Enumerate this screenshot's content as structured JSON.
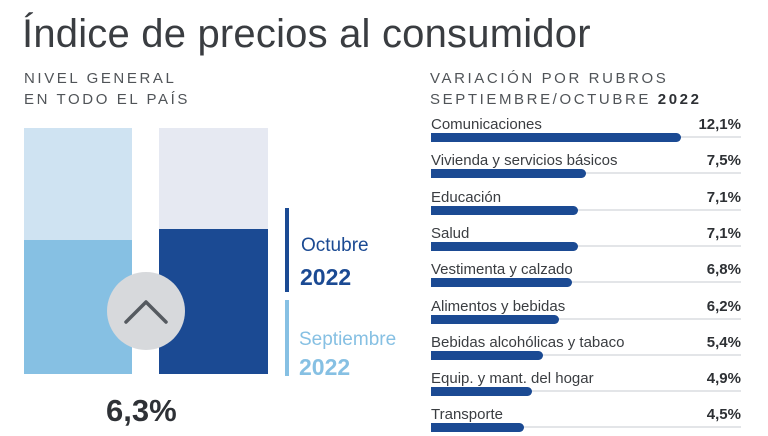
{
  "header": {
    "title": "Índice de precios al consumidor",
    "left_subtitle_line1": "NIVEL GENERAL",
    "left_subtitle_line2": "EN TODO EL PAÍS",
    "right_subtitle_line1": "VARIACIÓN POR RUBROS",
    "right_subtitle_line2_text": "SEPTIEMBRE/OCTUBRE",
    "right_subtitle_line2_year": "2022"
  },
  "colors": {
    "october": "#1b4a93",
    "september": "#86c0e3",
    "september_background": "#cfe3f2",
    "october_background": "#e6e9f2"
  },
  "chart_data": [
    {
      "type": "bar",
      "title": "",
      "categories": [
        "Septiembre 2022",
        "Octubre 2022"
      ],
      "values": [
        6.2,
        6.3
      ],
      "ylim": [
        0,
        11.5
      ],
      "legend": {
        "placement": "right",
        "entries": [
          {
            "month": "Octubre",
            "year": "2022",
            "color": "#1b4a93"
          },
          {
            "month": "Septiembre",
            "year": "2022",
            "color": "#86c0e3"
          }
        ]
      },
      "indicator_icon": "chevron-up-icon",
      "headline_value": "6,3%"
    },
    {
      "type": "bar",
      "orientation": "horizontal",
      "title": "",
      "xlim": [
        0,
        12.5
      ],
      "categories": [
        "Comunicaciones",
        "Vivienda y servicios básicos",
        "Educación",
        "Salud",
        "Vestimenta y calzado",
        "Alimentos y bebidas",
        "Bebidas alcohólicas y tabaco",
        "Equip. y mant. del hogar",
        "Transporte"
      ],
      "values": [
        12.1,
        7.5,
        7.1,
        7.1,
        6.8,
        6.2,
        5.4,
        4.9,
        4.5
      ],
      "value_labels": [
        "12,1%",
        "7,5%",
        "7,1%",
        "7,1%",
        "6,8%",
        "6,2%",
        "5,4%",
        "4,9%",
        "4,5%"
      ]
    }
  ]
}
